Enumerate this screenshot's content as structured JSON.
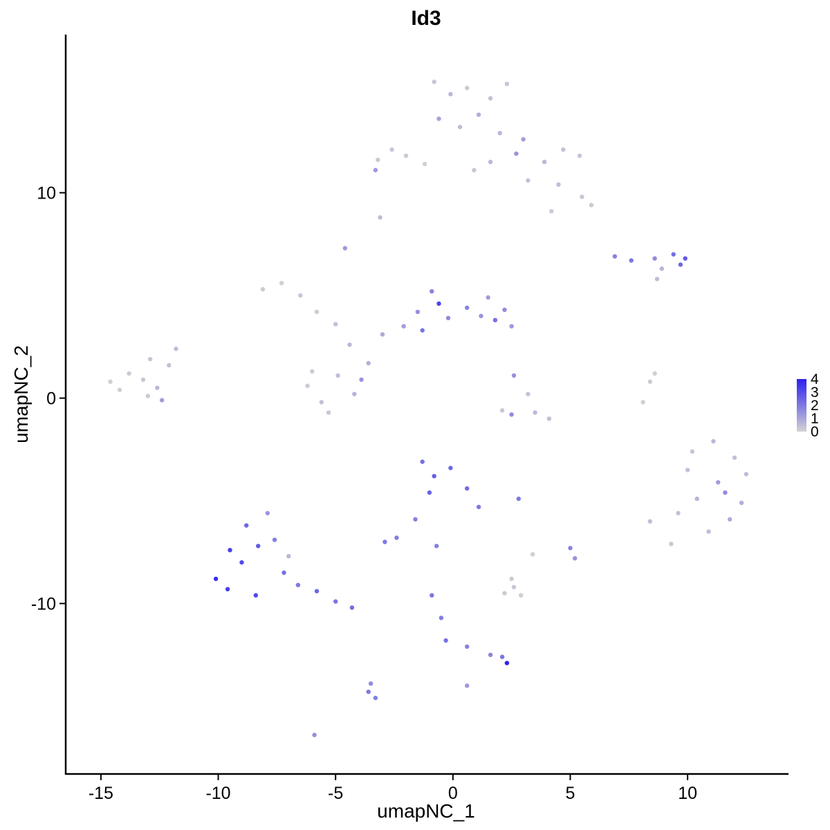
{
  "chart_data": {
    "type": "scatter",
    "title": "Id3",
    "xlabel": "umapNC_1",
    "ylabel": "umapNC_2",
    "xlim": [
      -16.5,
      14.3
    ],
    "ylim": [
      -18.3,
      17.7
    ],
    "x_ticks": [
      {
        "value": -15,
        "label": "-15"
      },
      {
        "value": -10,
        "label": "-10"
      },
      {
        "value": -5,
        "label": "-5"
      },
      {
        "value": 0,
        "label": "0"
      },
      {
        "value": 5,
        "label": "5"
      },
      {
        "value": 10,
        "label": "10"
      }
    ],
    "y_ticks": [
      {
        "value": -10,
        "label": "-10"
      },
      {
        "value": 0,
        "label": "0"
      },
      {
        "value": 10,
        "label": "10"
      }
    ],
    "color_scale": {
      "low_color": "#d3d3d3",
      "high_color": "#2b1ff0",
      "min": 0,
      "max": 4,
      "ticks": [
        {
          "value": 0,
          "label": "0"
        },
        {
          "value": 1,
          "label": "1"
        },
        {
          "value": 2,
          "label": "2"
        },
        {
          "value": 3,
          "label": "3"
        },
        {
          "value": 4,
          "label": "4"
        }
      ],
      "legend_position": "right"
    },
    "grid": false,
    "points": [
      [
        -13.2,
        0.9,
        0.3
      ],
      [
        -13.8,
        1.2,
        0.2
      ],
      [
        -12.6,
        0.5,
        0.6
      ],
      [
        -14.2,
        0.4,
        0.1
      ],
      [
        -12.1,
        1.6,
        0.4
      ],
      [
        -13.0,
        0.1,
        0.2
      ],
      [
        -12.9,
        1.9,
        0.3
      ],
      [
        -11.8,
        2.4,
        0.5
      ],
      [
        -14.6,
        0.8,
        0.1
      ],
      [
        -12.4,
        -0.1,
        1.2
      ],
      [
        -8.1,
        5.3,
        0.2
      ],
      [
        -7.3,
        5.6,
        0.1
      ],
      [
        -6.5,
        5.0,
        0.3
      ],
      [
        -5.8,
        4.2,
        0.2
      ],
      [
        -5.0,
        3.6,
        0.4
      ],
      [
        -4.4,
        2.6,
        0.6
      ],
      [
        -3.6,
        1.7,
        0.8
      ],
      [
        -3.0,
        3.1,
        0.9
      ],
      [
        -6.2,
        0.6,
        0.2
      ],
      [
        -5.6,
        -0.2,
        0.4
      ],
      [
        -4.9,
        1.1,
        0.5
      ],
      [
        -4.2,
        0.2,
        0.7
      ],
      [
        -3.9,
        0.9,
        1.4
      ],
      [
        -5.3,
        -0.7,
        0.3
      ],
      [
        -6.0,
        1.3,
        0.2
      ],
      [
        -1.5,
        4.2,
        1.5
      ],
      [
        -0.9,
        5.2,
        1.8
      ],
      [
        -0.6,
        4.6,
        3.2
      ],
      [
        -0.2,
        3.9,
        1.6
      ],
      [
        -2.1,
        3.5,
        1.2
      ],
      [
        0.6,
        4.4,
        1.8
      ],
      [
        1.2,
        4.0,
        1.4
      ],
      [
        1.8,
        3.8,
        2.2
      ],
      [
        2.2,
        4.3,
        1.6
      ],
      [
        2.5,
        3.5,
        1.3
      ],
      [
        1.5,
        4.9,
        1.2
      ],
      [
        -1.3,
        3.3,
        2.1
      ],
      [
        -0.8,
        15.4,
        0.3
      ],
      [
        -0.1,
        14.8,
        0.6
      ],
      [
        0.6,
        15.1,
        0.2
      ],
      [
        1.6,
        14.6,
        0.4
      ],
      [
        2.3,
        15.3,
        0.3
      ],
      [
        -0.6,
        13.6,
        1.1
      ],
      [
        0.3,
        13.2,
        0.5
      ],
      [
        1.1,
        13.8,
        0.8
      ],
      [
        2.0,
        12.9,
        0.6
      ],
      [
        3.0,
        12.6,
        1.2
      ],
      [
        2.7,
        11.9,
        1.4
      ],
      [
        3.9,
        11.5,
        0.6
      ],
      [
        4.7,
        12.1,
        0.4
      ],
      [
        5.4,
        11.8,
        0.3
      ],
      [
        4.5,
        10.4,
        0.5
      ],
      [
        5.5,
        9.8,
        0.3
      ],
      [
        5.9,
        9.4,
        0.2
      ],
      [
        4.2,
        9.1,
        0.2
      ],
      [
        3.2,
        10.6,
        0.4
      ],
      [
        1.6,
        11.5,
        0.6
      ],
      [
        0.9,
        11.1,
        0.3
      ],
      [
        -3.2,
        11.6,
        0.2
      ],
      [
        -2.6,
        12.1,
        0.3
      ],
      [
        -2.0,
        11.8,
        0.2
      ],
      [
        -1.2,
        11.4,
        0.1
      ],
      [
        -3.3,
        11.1,
        1.3
      ],
      [
        6.9,
        6.9,
        1.8
      ],
      [
        7.6,
        6.7,
        2.1
      ],
      [
        8.6,
        6.8,
        1.6
      ],
      [
        9.4,
        7.0,
        2.2
      ],
      [
        9.9,
        6.8,
        2.7
      ],
      [
        9.7,
        6.5,
        2.4
      ],
      [
        8.9,
        6.3,
        0.7
      ],
      [
        8.7,
        5.8,
        0.5
      ],
      [
        10.2,
        -2.6,
        0.3
      ],
      [
        11.1,
        -2.1,
        0.6
      ],
      [
        12.0,
        -2.9,
        0.4
      ],
      [
        12.5,
        -3.7,
        0.5
      ],
      [
        11.3,
        -4.1,
        1.2
      ],
      [
        10.4,
        -4.9,
        0.7
      ],
      [
        9.6,
        -5.6,
        0.4
      ],
      [
        11.8,
        -5.9,
        0.9
      ],
      [
        10.9,
        -6.5,
        0.5
      ],
      [
        9.3,
        -7.1,
        0.3
      ],
      [
        8.4,
        -6.0,
        0.5
      ],
      [
        12.3,
        -5.1,
        0.8
      ],
      [
        10.0,
        -3.5,
        0.4
      ],
      [
        11.6,
        -4.6,
        1.6
      ],
      [
        -10.1,
        -8.8,
        3.7
      ],
      [
        -9.6,
        -9.3,
        3.3
      ],
      [
        -9.0,
        -8.0,
        3.0
      ],
      [
        -8.3,
        -7.2,
        2.7
      ],
      [
        -8.8,
        -6.2,
        2.4
      ],
      [
        -7.6,
        -6.9,
        1.9
      ],
      [
        -7.2,
        -8.5,
        2.2
      ],
      [
        -6.6,
        -9.1,
        2.0
      ],
      [
        -5.8,
        -9.4,
        2.4
      ],
      [
        -5.0,
        -9.9,
        2.1
      ],
      [
        -4.3,
        -10.2,
        2.3
      ],
      [
        -8.4,
        -9.6,
        3.1
      ],
      [
        -9.5,
        -7.4,
        3.3
      ],
      [
        -7.9,
        -5.6,
        1.4
      ],
      [
        -7.0,
        -7.7,
        0.6
      ],
      [
        -1.3,
        -3.1,
        2.2
      ],
      [
        -0.8,
        -3.8,
        2.6
      ],
      [
        -0.1,
        -3.4,
        2.4
      ],
      [
        0.6,
        -4.4,
        2.3
      ],
      [
        1.1,
        -5.3,
        2.0
      ],
      [
        -1.0,
        -4.6,
        2.5
      ],
      [
        -1.6,
        -5.9,
        1.8
      ],
      [
        -2.4,
        -6.8,
        1.9
      ],
      [
        -2.9,
        -7.0,
        2.0
      ],
      [
        -0.9,
        -9.6,
        2.1
      ],
      [
        -0.5,
        -10.7,
        1.9
      ],
      [
        -0.3,
        -11.8,
        2.2
      ],
      [
        0.6,
        -12.1,
        1.8
      ],
      [
        1.6,
        -12.5,
        1.7
      ],
      [
        2.3,
        -12.9,
        3.9
      ],
      [
        2.1,
        -12.6,
        2.1
      ],
      [
        -3.6,
        -14.3,
        2.0
      ],
      [
        -3.3,
        -14.6,
        1.9
      ],
      [
        -3.5,
        -13.9,
        1.6
      ],
      [
        -5.9,
        -16.4,
        1.5
      ],
      [
        0.6,
        -14.0,
        1.3
      ],
      [
        2.2,
        -9.5,
        0.2
      ],
      [
        2.6,
        -9.2,
        0.3
      ],
      [
        2.9,
        -9.6,
        0.1
      ],
      [
        2.5,
        -8.8,
        0.2
      ],
      [
        3.4,
        -7.6,
        0.1
      ],
      [
        2.8,
        -4.9,
        2.0
      ],
      [
        5.0,
        -7.3,
        1.8
      ],
      [
        5.2,
        -7.8,
        1.4
      ],
      [
        2.6,
        1.1,
        1.5
      ],
      [
        3.2,
        0.2,
        0.4
      ],
      [
        3.5,
        -0.7,
        0.6
      ],
      [
        2.5,
        -0.8,
        1.6
      ],
      [
        4.1,
        -1.0,
        0.4
      ],
      [
        2.1,
        -0.6,
        0.3
      ],
      [
        8.4,
        0.8,
        0.2
      ],
      [
        8.1,
        -0.2,
        0.1
      ],
      [
        8.6,
        1.2,
        0.1
      ],
      [
        -4.6,
        7.3,
        1.3
      ],
      [
        -3.1,
        8.8,
        0.5
      ],
      [
        -0.7,
        -7.2,
        1.9
      ]
    ]
  }
}
